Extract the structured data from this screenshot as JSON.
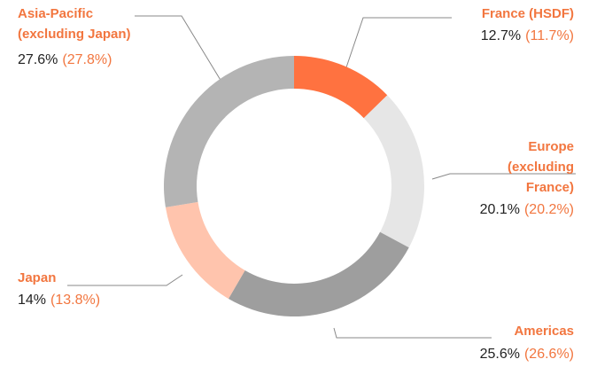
{
  "chart_data": {
    "type": "donut",
    "categories": [
      [
        "France (HSDF)"
      ],
      [
        "Europe",
        "(excluding",
        "France)"
      ],
      [
        "Americas"
      ],
      [
        "Japan"
      ],
      [
        "Asia-Pacific",
        "(excluding Japan)"
      ]
    ],
    "values": [
      12.7,
      20.1,
      25.6,
      14,
      27.6
    ],
    "value_labels": [
      "12.7%",
      "20.1%",
      "25.6%",
      "14%",
      "27.6%"
    ],
    "previous_values": [
      11.7,
      20.2,
      26.6,
      13.8,
      27.8
    ],
    "previous_labels": [
      "(11.7%)",
      "(20.2%)",
      "(26.6%)",
      "(13.8%)",
      "(27.8%)"
    ],
    "colors": [
      "#ff7240",
      "#e6e6e6",
      "#9e9e9e",
      "#ffc4ad",
      "#b4b4b4"
    ]
  }
}
